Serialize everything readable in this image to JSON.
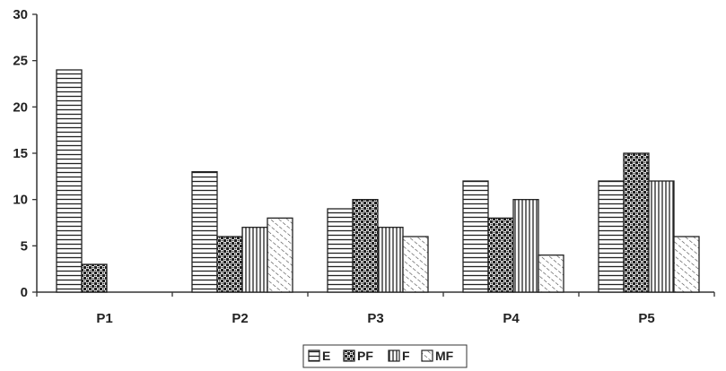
{
  "chart_data": {
    "type": "bar",
    "categories": [
      "P1",
      "P2",
      "P3",
      "P4",
      "P5"
    ],
    "series": [
      {
        "name": "E",
        "pattern": "horizontal-lines",
        "values": [
          24,
          13,
          9,
          12,
          12
        ]
      },
      {
        "name": "PF",
        "pattern": "checker-dots",
        "values": [
          3,
          6,
          10,
          8,
          15
        ]
      },
      {
        "name": "F",
        "pattern": "vertical-lines",
        "values": [
          0,
          7,
          7,
          10,
          12
        ]
      },
      {
        "name": "MF",
        "pattern": "diagonal-lines",
        "values": [
          0,
          8,
          6,
          4,
          6
        ]
      }
    ],
    "ylim": [
      0,
      30
    ],
    "yticks": [
      "0",
      "5",
      "10",
      "15",
      "20",
      "25",
      "30"
    ],
    "grid": false,
    "legend_position": "bottom-center",
    "colors": {
      "stroke": "#222222",
      "fill": "#ffffff",
      "axis": "#333333"
    }
  }
}
